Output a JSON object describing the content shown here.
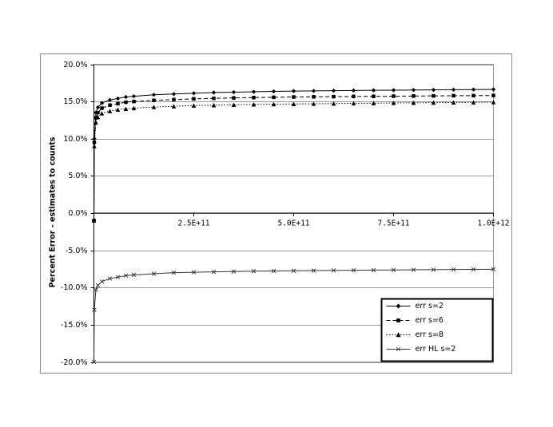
{
  "chart_data": {
    "type": "line",
    "y_label": "Percent Error - estimates to counts",
    "xlim": [
      0,
      1000000000000
    ],
    "xticks": [
      {
        "value": 250000000000,
        "label": "2.5E+11"
      },
      {
        "value": 500000000000,
        "label": "5.0E+11"
      },
      {
        "value": 750000000000,
        "label": "7.5E+11"
      },
      {
        "value": 1000000000000,
        "label": "1.0E+12"
      }
    ],
    "ylim": [
      -20,
      20
    ],
    "yticks": [
      {
        "value": -20,
        "label": "-20.0%"
      },
      {
        "value": -15,
        "label": "-15.0%"
      },
      {
        "value": -10,
        "label": "-10.0%"
      },
      {
        "value": -5,
        "label": "-5.0%"
      },
      {
        "value": 0,
        "label": "0.0%"
      },
      {
        "value": 5,
        "label": "5.0%"
      },
      {
        "value": 10,
        "label": "10.0%"
      },
      {
        "value": 15,
        "label": "15.0%"
      },
      {
        "value": 20,
        "label": "20.0%"
      }
    ],
    "grid": true,
    "legend": "lower right",
    "x": [
      100000000,
      1000000000,
      5000000000,
      10000000000,
      20000000000,
      40000000000,
      60000000000,
      80000000000,
      100000000000,
      150000000000,
      200000000000,
      250000000000,
      300000000000,
      350000000000,
      400000000000,
      450000000000,
      500000000000,
      550000000000,
      600000000000,
      650000000000,
      700000000000,
      750000000000,
      800000000000,
      850000000000,
      900000000000,
      950000000000,
      1000000000000
    ],
    "series": [
      {
        "name": "err s=2",
        "color": "#000000",
        "dash": "solid",
        "marker": "diamond",
        "values": [
          -1,
          10,
          13.5,
          14.2,
          14.8,
          15.2,
          15.4,
          15.6,
          15.7,
          15.9,
          16.0,
          16.1,
          16.2,
          16.25,
          16.3,
          16.35,
          16.4,
          16.42,
          16.45,
          16.48,
          16.5,
          16.52,
          16.54,
          16.56,
          16.58,
          16.6,
          16.62
        ]
      },
      {
        "name": "err s=6",
        "color": "#000000",
        "dash": "dash",
        "marker": "square",
        "values": [
          -1,
          9.5,
          12.8,
          13.5,
          14.1,
          14.5,
          14.7,
          14.9,
          15.0,
          15.15,
          15.25,
          15.35,
          15.42,
          15.48,
          15.52,
          15.56,
          15.6,
          15.62,
          15.65,
          15.67,
          15.69,
          15.71,
          15.73,
          15.75,
          15.77,
          15.78,
          15.8
        ]
      },
      {
        "name": "err s=8",
        "color": "#000000",
        "dash": "dot",
        "marker": "triangle",
        "values": [
          -1,
          9,
          12.2,
          12.9,
          13.4,
          13.7,
          13.9,
          14.0,
          14.1,
          14.25,
          14.35,
          14.45,
          14.5,
          14.55,
          14.6,
          14.63,
          14.66,
          14.69,
          14.72,
          14.75,
          14.77,
          14.8,
          14.82,
          14.84,
          14.86,
          14.88,
          14.9
        ]
      },
      {
        "name": "err HL s=2",
        "color": "#333333",
        "dash": "solid",
        "marker": "x",
        "values": [
          -20,
          -13,
          -10.3,
          -9.7,
          -9.2,
          -8.8,
          -8.6,
          -8.4,
          -8.3,
          -8.15,
          -8.0,
          -7.95,
          -7.9,
          -7.85,
          -7.8,
          -7.78,
          -7.75,
          -7.72,
          -7.7,
          -7.68,
          -7.66,
          -7.64,
          -7.62,
          -7.6,
          -7.58,
          -7.56,
          -7.55
        ]
      }
    ]
  }
}
